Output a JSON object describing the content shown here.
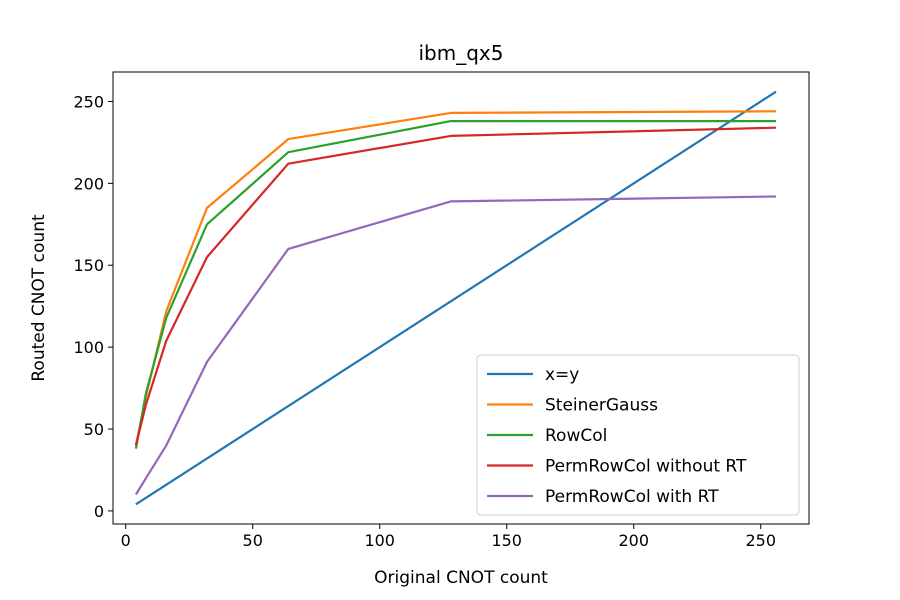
{
  "chart_data": {
    "type": "line",
    "title": "ibm_qx5",
    "xlabel": "Original CNOT count",
    "ylabel": "Routed CNOT count",
    "xlim": [
      -5,
      269
    ],
    "ylim": [
      -8,
      268
    ],
    "xticks": [
      0,
      50,
      100,
      150,
      200,
      250
    ],
    "yticks": [
      0,
      50,
      100,
      150,
      200,
      250
    ],
    "grid": false,
    "legend_position": "lower-right",
    "series": [
      {
        "name": "x=y",
        "color": "#1f77b4",
        "x": [
          4,
          256
        ],
        "y": [
          4,
          256
        ]
      },
      {
        "name": "SteinerGauss",
        "color": "#ff7f0e",
        "x": [
          4,
          8,
          16,
          32,
          64,
          128,
          256
        ],
        "y": [
          40,
          70,
          122,
          185,
          227,
          243,
          244
        ]
      },
      {
        "name": "RowCol",
        "color": "#2ca02c",
        "x": [
          4,
          8,
          16,
          32,
          64,
          128,
          256
        ],
        "y": [
          38,
          72,
          118,
          175,
          219,
          238,
          238
        ]
      },
      {
        "name": "PermRowCol without RT",
        "color": "#d62728",
        "x": [
          4,
          8,
          16,
          32,
          64,
          128,
          256
        ],
        "y": [
          40,
          65,
          104,
          155,
          212,
          229,
          234
        ]
      },
      {
        "name": "PermRowCol with RT",
        "color": "#9467bd",
        "x": [
          4,
          8,
          16,
          32,
          64,
          128,
          256
        ],
        "y": [
          10,
          20,
          40,
          91,
          160,
          189,
          192
        ]
      }
    ]
  }
}
